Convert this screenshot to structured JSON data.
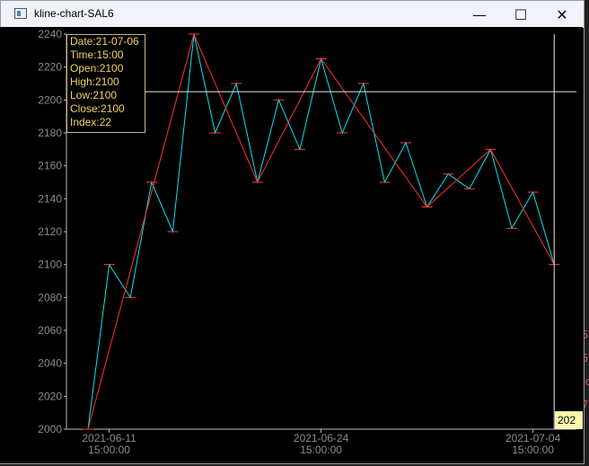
{
  "window": {
    "title": "kline-chart-SAL6",
    "minimize_glyph": "—",
    "maximize_glyph": "☐",
    "close_glyph": "✕"
  },
  "tooltip": {
    "date": "Date:21-07-06",
    "time": "Time:15:00",
    "open": "Open:2100",
    "high": "High:2100",
    "low": "Low:2100",
    "close": "Close:2100",
    "index": "Index:22"
  },
  "crosshair": {
    "price": 2205,
    "x_label": "202"
  },
  "background_fragments": [
    "re",
    "4",
    "4",
    "4",
    "-",
    "or",
    "5",
    "5",
    "nc",
    "7"
  ],
  "chart_data": {
    "type": "line",
    "ylim": [
      2000,
      2240
    ],
    "yticks": [
      2000,
      2020,
      2040,
      2060,
      2080,
      2100,
      2120,
      2140,
      2160,
      2180,
      2200,
      2220,
      2240
    ],
    "xticks": [
      {
        "index": 1,
        "date": "2021-06-11",
        "time": "15:00:00"
      },
      {
        "index": 11,
        "date": "2021-06-24",
        "time": "15:00:00"
      },
      {
        "index": 21,
        "date": "2021-07-04",
        "time": "15:00:00"
      }
    ],
    "series": [
      {
        "color": "#00e5ee",
        "x": [
          0,
          1,
          2,
          3,
          4,
          5,
          6,
          7,
          8,
          9,
          10,
          11,
          12,
          13,
          14,
          15,
          16,
          17,
          18,
          19,
          20,
          21,
          22
        ],
        "values": [
          2000,
          2100,
          2080,
          2150,
          2120,
          2240,
          2180,
          2210,
          2150,
          2200,
          2170,
          2225,
          2180,
          2210,
          2150,
          2174,
          2135,
          2155,
          2146,
          2170,
          2122,
          2144,
          2100
        ]
      },
      {
        "color": "#ff3030",
        "x": [
          0,
          5,
          8,
          11,
          16,
          19,
          22
        ],
        "values": [
          2000,
          2240,
          2150,
          2225,
          2135,
          2170,
          2100
        ]
      }
    ]
  }
}
